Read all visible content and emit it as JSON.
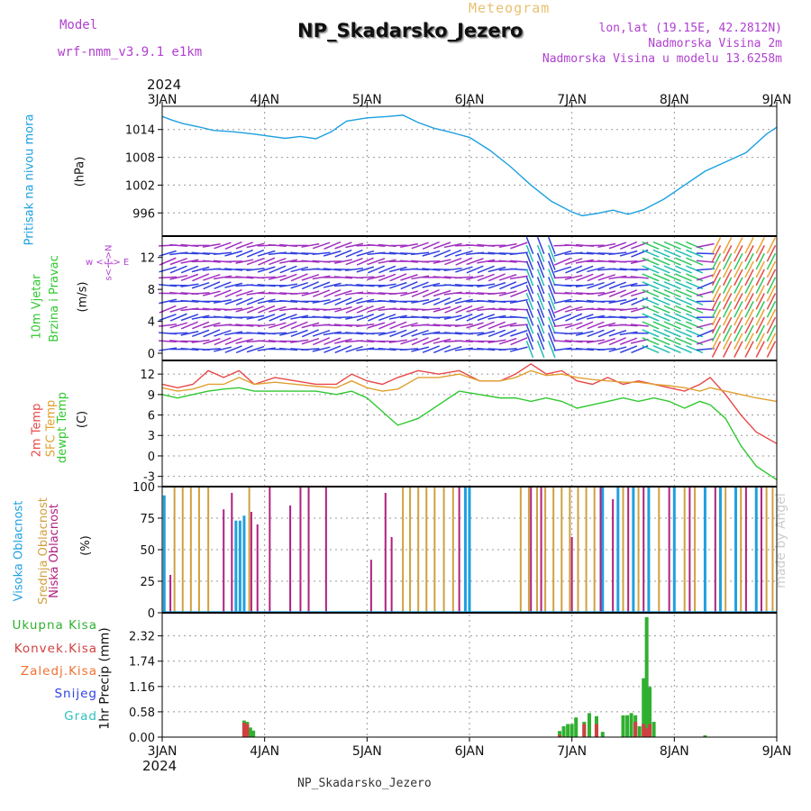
{
  "header": {
    "model_label": "Model",
    "model_name": "wrf-nmm_v3.9.1 e1km",
    "title": "NP_Skadarsko_Jezero",
    "meteogram_label": "Meteogram",
    "lonlat": "lon,lat (19.15E, 42.2812N)",
    "altitude": "Nadmorska Visina 2m",
    "model_altitude": "Nadmorska Visina u modelu 13.6258m",
    "watermark": "made by Angel"
  },
  "footer": {
    "station": "NP_Skadarsko_Jezero"
  },
  "time_axis": {
    "year": "2024",
    "labels": [
      "3JAN",
      "4JAN",
      "5JAN",
      "6JAN",
      "7JAN",
      "8JAN",
      "9JAN"
    ],
    "start_day": 3,
    "end_day": 9
  },
  "panel_labels": {
    "pressure": [
      "Pritisak na nivou mora",
      "(hPa)"
    ],
    "wind": [
      "10m Vjetar",
      "Brzina i Pravac",
      "(m/s)"
    ],
    "compass": "w <-|-> E",
    "compass_ns": "s<-|->N",
    "temp": [
      "2m Temp",
      "SFC Temp",
      "dewpt Temp",
      "(C)"
    ],
    "cloud": [
      "Visoka Oblacnost",
      "Srednja Oblacnost",
      "Niska Oblacnost",
      "(%)"
    ],
    "precip_unit": "1hr Precip (mm)",
    "precip_legend": [
      "Ukupna Kisa",
      "Konvek.Kisa",
      "Zaledj.Kisa",
      "Snijeg",
      "Grad"
    ]
  },
  "colors": {
    "pressure": "#1ca0e0",
    "temp2m": "#e84848",
    "sfc": "#e0a030",
    "dewpt": "#30c830",
    "high": "#20a0e0",
    "mid": "#d0a040",
    "low": "#b02080",
    "total": "#30b030",
    "conv": "#d04040",
    "frz": "#f07030",
    "snow": "#3040e0",
    "grad": "#30c0c0",
    "purple": "#b040d0"
  },
  "chart_data": [
    {
      "type": "line",
      "panel": "pressure",
      "ylabel": "(hPa)",
      "yticks": [
        996,
        1002,
        1008,
        1014
      ],
      "ylim": [
        991,
        1019
      ],
      "x": [
        3.0,
        3.1,
        3.2,
        3.35,
        3.5,
        3.7,
        3.9,
        4.0,
        4.2,
        4.35,
        4.5,
        4.65,
        4.8,
        5.0,
        5.2,
        5.35,
        5.5,
        5.65,
        5.8,
        6.0,
        6.2,
        6.4,
        6.6,
        6.8,
        7.0,
        7.1,
        7.25,
        7.4,
        7.55,
        7.7,
        7.9,
        8.1,
        8.3,
        8.5,
        8.7,
        8.9,
        9.0
      ],
      "y": [
        1016.8,
        1016.0,
        1015.3,
        1014.6,
        1013.8,
        1013.5,
        1013.0,
        1012.7,
        1012.1,
        1012.5,
        1012.0,
        1013.5,
        1015.8,
        1016.5,
        1016.8,
        1017.1,
        1015.5,
        1014.3,
        1013.5,
        1012.3,
        1009.5,
        1006.0,
        1002.0,
        998.5,
        996.2,
        995.4,
        995.9,
        996.6,
        995.7,
        996.7,
        999.0,
        1002.0,
        1005.0,
        1007.0,
        1009.0,
        1013.0,
        1014.5
      ]
    },
    {
      "type": "line",
      "panel": "temperature",
      "ylabel": "(C)",
      "yticks": [
        -3,
        0,
        3,
        6,
        9,
        12
      ],
      "ylim": [
        -4.5,
        14
      ],
      "x": [
        3.0,
        3.15,
        3.3,
        3.45,
        3.6,
        3.75,
        3.9,
        4.1,
        4.3,
        4.5,
        4.7,
        4.85,
        5.0,
        5.15,
        5.3,
        5.5,
        5.7,
        5.9,
        6.1,
        6.3,
        6.45,
        6.6,
        6.75,
        6.9,
        7.05,
        7.2,
        7.35,
        7.5,
        7.65,
        7.8,
        7.95,
        8.1,
        8.25,
        8.35,
        8.5,
        8.65,
        8.8,
        9.0
      ],
      "series": [
        {
          "name": "2m Temp",
          "values": [
            10.5,
            10.0,
            10.5,
            12.5,
            11.5,
            12.5,
            10.5,
            11.5,
            11.0,
            10.5,
            10.5,
            12.0,
            11.0,
            10.5,
            11.5,
            12.5,
            12.0,
            12.5,
            11.0,
            11.0,
            12.0,
            13.5,
            12.0,
            12.5,
            11.0,
            10.5,
            11.5,
            10.5,
            11.0,
            10.5,
            10.0,
            9.5,
            10.5,
            11.5,
            9.0,
            6.0,
            3.5,
            1.8
          ]
        },
        {
          "name": "SFC Temp",
          "values": [
            10.0,
            9.5,
            9.8,
            10.5,
            10.5,
            11.5,
            10.5,
            10.8,
            10.5,
            10.2,
            10.0,
            11.0,
            10.0,
            9.5,
            9.8,
            11.5,
            11.5,
            12.0,
            11.0,
            11.0,
            11.5,
            12.5,
            11.8,
            12.0,
            11.5,
            11.2,
            11.0,
            10.8,
            10.8,
            10.5,
            10.3,
            10.0,
            9.5,
            10.0,
            9.5,
            9.0,
            8.5,
            8.0
          ]
        },
        {
          "name": "dewpt Temp",
          "values": [
            9.0,
            8.5,
            9.0,
            9.5,
            9.8,
            10.0,
            9.5,
            9.5,
            9.5,
            9.5,
            9.0,
            9.5,
            8.5,
            6.5,
            4.5,
            5.5,
            7.5,
            9.5,
            9.0,
            8.5,
            8.5,
            8.0,
            8.5,
            8.0,
            7.0,
            7.5,
            8.0,
            8.5,
            8.0,
            8.5,
            8.0,
            7.0,
            8.0,
            7.5,
            5.5,
            1.5,
            -1.5,
            -3.5
          ]
        }
      ]
    },
    {
      "type": "bar",
      "panel": "cloud",
      "ylabel": "(%)",
      "yticks": [
        0,
        25,
        50,
        75,
        100
      ],
      "ylim": [
        0,
        100
      ],
      "series": [
        {
          "name": "Visoka Oblacnost",
          "values": [
            [
              3.02,
              93
            ],
            [
              3.72,
              73
            ],
            [
              3.76,
              73
            ],
            [
              3.8,
              77
            ],
            [
              5.96,
              100
            ],
            [
              6.0,
              100
            ],
            [
              7.3,
              100
            ],
            [
              7.45,
              100
            ],
            [
              7.6,
              100
            ],
            [
              7.75,
              100
            ],
            [
              8.0,
              100
            ],
            [
              8.3,
              100
            ],
            [
              8.45,
              100
            ],
            [
              8.6,
              100
            ],
            [
              8.8,
              100
            ]
          ]
        },
        {
          "name": "Srednja Oblacnost",
          "values": [
            [
              3.12,
              100
            ],
            [
              3.2,
              100
            ],
            [
              3.28,
              100
            ],
            [
              3.36,
              100
            ],
            [
              3.45,
              100
            ],
            [
              3.85,
              100
            ],
            [
              5.35,
              100
            ],
            [
              5.42,
              100
            ],
            [
              5.5,
              100
            ],
            [
              5.58,
              100
            ],
            [
              5.66,
              100
            ],
            [
              5.75,
              100
            ],
            [
              5.84,
              100
            ],
            [
              6.5,
              100
            ],
            [
              6.58,
              100
            ],
            [
              6.66,
              100
            ],
            [
              6.74,
              100
            ],
            [
              6.82,
              100
            ],
            [
              6.9,
              100
            ],
            [
              6.98,
              100
            ],
            [
              7.06,
              100
            ],
            [
              7.14,
              100
            ],
            [
              7.22,
              100
            ],
            [
              7.5,
              100
            ],
            [
              7.65,
              100
            ],
            [
              7.85,
              100
            ],
            [
              8.1,
              100
            ],
            [
              8.2,
              100
            ],
            [
              8.5,
              100
            ],
            [
              8.65,
              100
            ],
            [
              8.9,
              100
            ],
            [
              8.96,
              100
            ]
          ]
        },
        {
          "name": "Niska Oblacnost",
          "values": [
            [
              3.08,
              30
            ],
            [
              3.6,
              82
            ],
            [
              3.68,
              95
            ],
            [
              3.87,
              80
            ],
            [
              3.93,
              70
            ],
            [
              4.05,
              100
            ],
            [
              4.25,
              85
            ],
            [
              4.35,
              100
            ],
            [
              4.43,
              100
            ],
            [
              4.6,
              100
            ],
            [
              5.04,
              42
            ],
            [
              5.18,
              95
            ],
            [
              5.24,
              60
            ],
            [
              5.9,
              100
            ],
            [
              6.6,
              100
            ],
            [
              6.7,
              100
            ],
            [
              7.0,
              60
            ],
            [
              7.28,
              100
            ],
            [
              7.4,
              90
            ],
            [
              7.55,
              100
            ],
            [
              7.7,
              100
            ],
            [
              7.95,
              100
            ],
            [
              8.15,
              100
            ],
            [
              8.4,
              100
            ],
            [
              8.7,
              100
            ],
            [
              8.85,
              100
            ]
          ]
        }
      ]
    },
    {
      "type": "bar",
      "panel": "precip",
      "ylabel": "1hr Precip (mm)",
      "yticks": [
        0,
        0.58,
        1.16,
        1.74,
        2.32
      ],
      "ylim": [
        0,
        2.85
      ],
      "series": [
        {
          "name": "Ukupna Kisa",
          "values": [
            [
              3.8,
              0.38
            ],
            [
              3.83,
              0.35
            ],
            [
              3.86,
              0.22
            ],
            [
              3.89,
              0.15
            ],
            [
              6.88,
              0.14
            ],
            [
              6.92,
              0.25
            ],
            [
              6.96,
              0.3
            ],
            [
              7.0,
              0.3
            ],
            [
              7.04,
              0.45
            ],
            [
              7.12,
              0.35
            ],
            [
              7.17,
              0.55
            ],
            [
              7.24,
              0.48
            ],
            [
              7.3,
              0.12
            ],
            [
              7.5,
              0.5
            ],
            [
              7.54,
              0.5
            ],
            [
              7.58,
              0.55
            ],
            [
              7.62,
              0.5
            ],
            [
              7.66,
              0.25
            ],
            [
              7.7,
              1.35
            ],
            [
              7.73,
              2.75
            ],
            [
              7.76,
              1.15
            ],
            [
              7.8,
              0.35
            ],
            [
              8.3,
              0.04
            ]
          ]
        },
        {
          "name": "Konvek.Kisa",
          "values": [
            [
              3.8,
              0.33
            ],
            [
              3.83,
              0.3
            ],
            [
              6.88,
              0.05
            ],
            [
              7.12,
              0.3
            ],
            [
              7.24,
              0.3
            ],
            [
              7.62,
              0.35
            ],
            [
              7.7,
              0.3
            ],
            [
              7.73,
              0.2
            ],
            [
              7.76,
              0.3
            ]
          ]
        }
      ]
    }
  ]
}
